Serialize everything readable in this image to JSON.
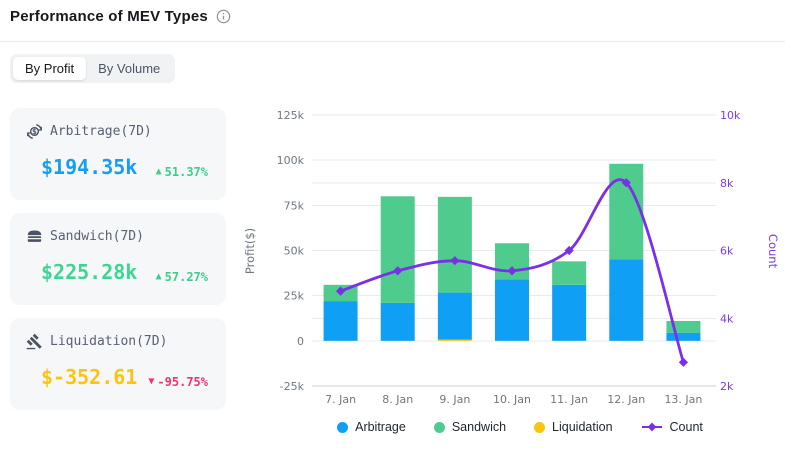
{
  "header": {
    "title": "Performance of MEV Types"
  },
  "tabs": [
    {
      "label": "By Profit",
      "active": true
    },
    {
      "label": "By Volume",
      "active": false
    }
  ],
  "cards": [
    {
      "label": "Arbitrage(7D)",
      "value": "$194.35k",
      "arrow": "▲",
      "change": "51.37%",
      "value_color": "#189df5",
      "change_color": "#3fcd8b",
      "icon": "arbitrage-coin-icon"
    },
    {
      "label": "Sandwich(7D)",
      "value": "$225.28k",
      "arrow": "▲",
      "change": "57.27%",
      "value_color": "#3ed494",
      "change_color": "#3fcd8b",
      "icon": "sandwich-icon"
    },
    {
      "label": "Liquidation(7D)",
      "value": "$-352.61",
      "arrow": "▼",
      "change": "-95.75%",
      "value_color": "#fcc40d",
      "change_color": "#f1366b",
      "icon": "liquidation-gavel-icon"
    }
  ],
  "chart_data": {
    "type": "bar",
    "subtype": "stacked bars + smooth line, dual y-axis",
    "categories": [
      "7. Jan",
      "8. Jan",
      "9. Jan",
      "10. Jan",
      "11. Jan",
      "12. Jan",
      "13. Jan"
    ],
    "series": [
      {
        "name": "Arbitrage",
        "type": "bar",
        "axis": "left",
        "color": "#0fa0f5",
        "values": [
          22000,
          21000,
          26000,
          34000,
          31000,
          45000,
          4500
        ]
      },
      {
        "name": "Sandwich",
        "type": "bar",
        "axis": "left",
        "color": "#4ecb8d",
        "values": [
          9000,
          59000,
          53000,
          20000,
          13000,
          53000,
          6500
        ]
      },
      {
        "name": "Liquidation",
        "type": "bar",
        "axis": "left",
        "color": "#fcc40d",
        "values": [
          0,
          0,
          700,
          0,
          0,
          0,
          0
        ]
      },
      {
        "name": "Count",
        "type": "line",
        "axis": "right",
        "color": "#7b2fe8",
        "values": [
          4800,
          5400,
          5700,
          5400,
          6000,
          8000,
          2700
        ]
      }
    ],
    "left_axis": {
      "label": "Profit($)",
      "min": -25000,
      "max": 125000,
      "tick_values": [
        125000,
        100000,
        75000,
        50000,
        25000,
        0,
        -25000
      ],
      "tick_labels": [
        "125k",
        "100k",
        "75k",
        "50k",
        "25k",
        "0",
        "-25k"
      ]
    },
    "right_axis": {
      "label": "Count",
      "min": 2000,
      "max": 10000,
      "tick_values": [
        10000,
        8000,
        6000,
        4000,
        2000
      ],
      "tick_labels": [
        "10k",
        "8k",
        "6k",
        "4k",
        "2k"
      ]
    },
    "legend": [
      {
        "name": "Arbitrage",
        "marker": "circle",
        "color": "#0fa0f5"
      },
      {
        "name": "Sandwich",
        "marker": "circle",
        "color": "#4ecb8d"
      },
      {
        "name": "Liquidation",
        "marker": "circle",
        "color": "#fcc40d"
      },
      {
        "name": "Count",
        "marker": "line-diamond",
        "color": "#7b2fe8"
      }
    ],
    "grid": true,
    "legend_position": "bottom"
  },
  "colors": {
    "grid_line": "#e9ebef",
    "axis_line": "#c9ced6",
    "tick_text": "#6f7681",
    "right_axis_text": "#7c3aed",
    "card_bg": "#f6f7f9"
  }
}
